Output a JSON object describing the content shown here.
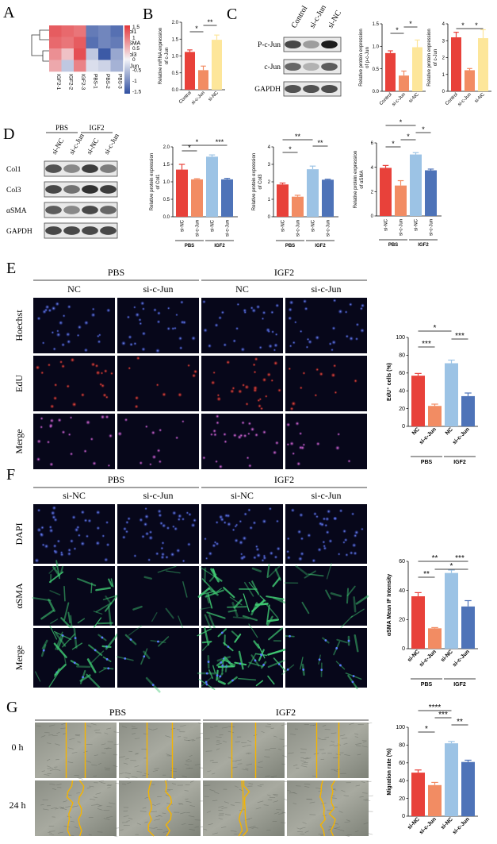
{
  "colors": {
    "red": "#e8413a",
    "salmon": "#f28c63",
    "lightblue": "#9cc3e5",
    "blue": "#4e73b8",
    "yellow": "#fde69a",
    "microscope_dark": "#0a0a18",
    "hoechst": "#2b46d8",
    "edu": "#e62c2c",
    "alpha_sma": "#36b26a",
    "scratch_line": "#f5b400"
  },
  "panel_letters": [
    "A",
    "B",
    "C",
    "D",
    "E",
    "F",
    "G"
  ],
  "heatmap": {
    "rows": [
      "Col1",
      "αSMA",
      "Col3",
      "c-Jun"
    ],
    "cols": [
      "IGF2-1",
      "IGF2-2",
      "IGF2-3",
      "PBS-1",
      "PBS-2",
      "PBS-3"
    ],
    "values": [
      [
        1.2,
        1.1,
        1.0,
        -1.1,
        -1.0,
        -1.2
      ],
      [
        1.1,
        1.0,
        1.2,
        -1.2,
        -1.0,
        -1.1
      ],
      [
        0.8,
        0.4,
        1.3,
        -0.4,
        -1.4,
        -0.7
      ],
      [
        0.6,
        -0.4,
        0.9,
        -0.2,
        -0.3,
        -0.6
      ]
    ],
    "scale_ticks": [
      "1.5",
      "1",
      "0.5",
      "0",
      "-0.5",
      "-1",
      "-1.5"
    ]
  },
  "chart_data": [
    {
      "panel": "B",
      "type": "bar",
      "categories": [
        "Control",
        "si-c-Jun",
        "si-NC"
      ],
      "values": [
        1.12,
        0.58,
        1.48
      ],
      "errors": [
        0.06,
        0.12,
        0.14
      ],
      "ylabel": "Relative mRNA expression of c-Jun",
      "ylim": [
        0,
        2.0
      ],
      "yticks": [
        "0.0",
        "0.5",
        "1.0",
        "1.5",
        "2.0"
      ],
      "colors": [
        "#e8413a",
        "#f28c63",
        "#fde69a"
      ],
      "sig": [
        {
          "from": 0,
          "to": 1,
          "label": "*",
          "level": 1
        },
        {
          "from": 1,
          "to": 2,
          "label": "**",
          "level": 2
        }
      ]
    },
    {
      "panel": "C1",
      "type": "bar",
      "categories": [
        "Control",
        "si-c-Jun",
        "si-NC"
      ],
      "values": [
        0.85,
        0.35,
        0.98
      ],
      "errors": [
        0.05,
        0.1,
        0.16
      ],
      "ylabel": "Relative protein expression of p-c-Jun",
      "ylim": [
        0,
        1.5
      ],
      "yticks": [
        "0.0",
        "0.5",
        "1.0",
        "1.5"
      ],
      "colors": [
        "#e8413a",
        "#f28c63",
        "#fde69a"
      ],
      "sig": [
        {
          "from": 0,
          "to": 1,
          "label": "*",
          "level": 1
        },
        {
          "from": 1,
          "to": 2,
          "label": "*",
          "level": 2
        }
      ]
    },
    {
      "panel": "C2",
      "type": "bar",
      "categories": [
        "Control",
        "si-c-Jun",
        "si-NC"
      ],
      "values": [
        3.2,
        1.25,
        3.15
      ],
      "errors": [
        0.3,
        0.1,
        0.5
      ],
      "ylabel": "Relative protein expression of c-Jun",
      "ylim": [
        0,
        4
      ],
      "yticks": [
        "0",
        "1",
        "2",
        "3",
        "4"
      ],
      "colors": [
        "#e8413a",
        "#f28c63",
        "#fde69a"
      ],
      "sig": [
        {
          "from": 0,
          "to": 1,
          "label": "*",
          "level": 1
        },
        {
          "from": 1,
          "to": 2,
          "label": "*",
          "level": 1
        }
      ]
    },
    {
      "panel": "D1",
      "type": "bar",
      "categories": [
        "si-NC",
        "si-c-Jun",
        "si-NC",
        "si-c-Jun"
      ],
      "groups": [
        "PBS",
        "IGF2"
      ],
      "values": [
        1.35,
        1.07,
        1.72,
        1.07
      ],
      "errors": [
        0.15,
        0.02,
        0.05,
        0.03
      ],
      "ylabel": "Relative protein expression of Col1",
      "ylim": [
        0,
        2.0
      ],
      "yticks": [
        "0.0",
        "0.5",
        "1.0",
        "1.5",
        "2.0"
      ],
      "colors": [
        "#e8413a",
        "#f28c63",
        "#9cc3e5",
        "#4e73b8"
      ],
      "sig": [
        {
          "from": 0,
          "to": 1,
          "label": "*",
          "level": 1
        },
        {
          "from": 0,
          "to": 2,
          "label": "*",
          "level": 2
        },
        {
          "from": 2,
          "to": 3,
          "label": "***",
          "level": 2
        }
      ]
    },
    {
      "panel": "D2",
      "type": "bar",
      "categories": [
        "si-NC",
        "si-c-Jun",
        "si-NC",
        "si-c-Jun"
      ],
      "groups": [
        "PBS",
        "IGF2"
      ],
      "values": [
        1.85,
        1.15,
        2.72,
        2.12
      ],
      "errors": [
        0.08,
        0.08,
        0.18,
        0.03
      ],
      "ylabel": "Relative protein expression of Col3",
      "ylim": [
        0,
        4
      ],
      "yticks": [
        "0",
        "1",
        "2",
        "3",
        "4"
      ],
      "colors": [
        "#e8413a",
        "#f28c63",
        "#9cc3e5",
        "#4e73b8"
      ],
      "sig": [
        {
          "from": 0,
          "to": 1,
          "label": "*",
          "level": 1
        },
        {
          "from": 2,
          "to": 3,
          "label": "**",
          "level": 2
        },
        {
          "from": 0,
          "to": 2,
          "label": "**",
          "level": 3
        }
      ]
    },
    {
      "panel": "D3",
      "type": "bar",
      "categories": [
        "si-NC",
        "si-c-Jun",
        "si-NC",
        "si-c-Jun"
      ],
      "groups": [
        "PBS",
        "IGF2"
      ],
      "values": [
        3.95,
        2.5,
        5.05,
        3.75
      ],
      "errors": [
        0.2,
        0.4,
        0.15,
        0.1
      ],
      "ylabel": "Relative protein expression of αSMA",
      "ylim": [
        0,
        6
      ],
      "yticks": [
        "0",
        "2",
        "4",
        "6"
      ],
      "colors": [
        "#e8413a",
        "#f28c63",
        "#9cc3e5",
        "#4e73b8"
      ],
      "sig": [
        {
          "from": 0,
          "to": 1,
          "label": "*",
          "level": 1
        },
        {
          "from": 1,
          "to": 2,
          "label": "*",
          "level": 2
        },
        {
          "from": 2,
          "to": 3,
          "label": "*",
          "level": 3
        },
        {
          "from": 0,
          "to": 2,
          "label": "*",
          "level": 4
        }
      ]
    },
    {
      "panel": "E",
      "type": "bar",
      "categories": [
        "NC",
        "si-c-Jun",
        "NC",
        "si-c-Jun"
      ],
      "groups": [
        "PBS",
        "IGF2"
      ],
      "values": [
        57,
        23,
        71,
        34
      ],
      "errors": [
        2.5,
        2.0,
        3.5,
        3.5
      ],
      "ylabel": "EdU⁺ cells (%)",
      "ylim": [
        0,
        100
      ],
      "yticks": [
        "0",
        "20",
        "40",
        "60",
        "80",
        "100"
      ],
      "colors": [
        "#e8413a",
        "#f28c63",
        "#9cc3e5",
        "#4e73b8"
      ],
      "sig": [
        {
          "from": 0,
          "to": 1,
          "label": "***",
          "level": 1
        },
        {
          "from": 2,
          "to": 3,
          "label": "***",
          "level": 2
        },
        {
          "from": 0,
          "to": 2,
          "label": "*",
          "level": 3
        }
      ]
    },
    {
      "panel": "F",
      "type": "bar",
      "categories": [
        "si-NC",
        "si-c-Jun",
        "si-NC",
        "si-c-Jun"
      ],
      "groups": [
        "PBS",
        "IGF2"
      ],
      "values": [
        36,
        14,
        52,
        29
      ],
      "errors": [
        2.5,
        0.5,
        2.0,
        4.0
      ],
      "ylabel": "αSMA Mean IF Intensity",
      "ylim": [
        0,
        60
      ],
      "yticks": [
        "0",
        "20",
        "40",
        "60"
      ],
      "colors": [
        "#e8413a",
        "#f28c63",
        "#9cc3e5",
        "#4e73b8"
      ],
      "sig": [
        {
          "from": 0,
          "to": 1,
          "label": "**",
          "level": 1
        },
        {
          "from": 1,
          "to": 3,
          "label": "*",
          "level": 2
        },
        {
          "from": 0,
          "to": 2,
          "label": "**",
          "level": 3
        },
        {
          "from": 2,
          "to": 3,
          "label": "***",
          "level": 3
        }
      ]
    },
    {
      "panel": "G",
      "type": "bar",
      "categories": [
        "si-NC",
        "si-c-Jun",
        "si-NC",
        "si-c-Jun"
      ],
      "groups": [
        "PBS",
        "IGF2"
      ],
      "values": [
        49,
        35,
        82,
        61
      ],
      "errors": [
        3,
        3,
        2,
        2
      ],
      "ylabel": "Migration rate (%)",
      "ylim": [
        0,
        100
      ],
      "yticks": [
        "0",
        "20",
        "40",
        "60",
        "80",
        "100"
      ],
      "colors": [
        "#e8413a",
        "#f28c63",
        "#9cc3e5",
        "#4e73b8"
      ],
      "sig": [
        {
          "from": 0,
          "to": 1,
          "label": "*",
          "level": 1
        },
        {
          "from": 2,
          "to": 3,
          "label": "**",
          "level": 2
        },
        {
          "from": 1,
          "to": 2,
          "label": "***",
          "level": 3
        },
        {
          "from": 0,
          "to": 2,
          "label": "****",
          "level": 4
        }
      ]
    }
  ],
  "blot_c": {
    "lanes": [
      "Control",
      "si-c-Jun",
      "si-NC"
    ],
    "rows": [
      "P-c-Jun",
      "c-Jun",
      "GAPDH"
    ],
    "intensity": [
      [
        0.75,
        0.35,
        0.95
      ],
      [
        0.6,
        0.25,
        0.65
      ],
      [
        0.7,
        0.7,
        0.72
      ]
    ]
  },
  "blot_d": {
    "group_labels": [
      "PBS",
      "IGF2"
    ],
    "lanes": [
      "si-NC",
      "si-c-Jun",
      "si-NC",
      "si-c-Jun"
    ],
    "rows": [
      "Col1",
      "Col3",
      "αSMA",
      "GAPDH"
    ],
    "intensity": [
      [
        0.7,
        0.45,
        0.8,
        0.5
      ],
      [
        0.75,
        0.55,
        0.85,
        0.8
      ],
      [
        0.65,
        0.45,
        0.75,
        0.6
      ],
      [
        0.75,
        0.75,
        0.75,
        0.75
      ]
    ]
  },
  "micro_e": {
    "groups": [
      "PBS",
      "IGF2"
    ],
    "cols": [
      "NC",
      "si-c-Jun",
      "NC",
      "si-c-Jun"
    ],
    "rows": [
      "Hoechst",
      "EdU",
      "Merge"
    ]
  },
  "micro_f": {
    "groups": [
      "PBS",
      "IGF2"
    ],
    "cols": [
      "si-NC",
      "si-c-Jun",
      "si-NC",
      "si-c-Jun"
    ],
    "rows": [
      "DAPI",
      "αSMA",
      "Merge"
    ]
  },
  "micro_g": {
    "groups": [
      "PBS",
      "IGF2"
    ],
    "cols": [
      "si-NC",
      "si-c-Jun",
      "si-NC",
      "si-c-Jun"
    ],
    "rows": [
      "0 h",
      "24 h"
    ]
  }
}
